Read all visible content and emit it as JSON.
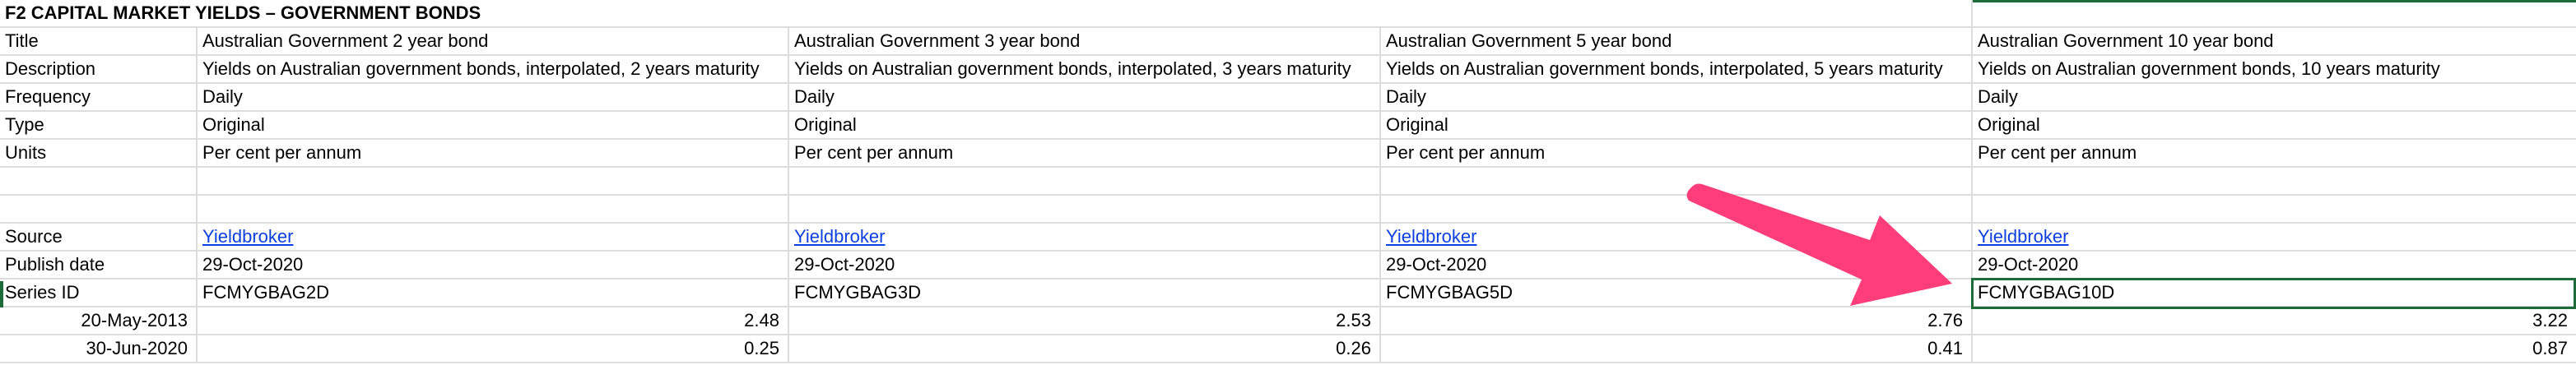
{
  "sheet": {
    "title": "F2 CAPITAL MARKET YIELDS – GOVERNMENT BONDS",
    "labels": {
      "title": "Title",
      "description": "Description",
      "frequency": "Frequency",
      "type": "Type",
      "units": "Units",
      "source": "Source",
      "publish_date": "Publish date",
      "series_id": "Series ID"
    },
    "columns": [
      {
        "title": "Australian Government 2 year bond",
        "description": "Yields on Australian government bonds, interpolated, 2 years maturity",
        "frequency": "Daily",
        "type": "Original",
        "units": "Per cent per annum",
        "source": "Yieldbroker",
        "publish_date": "29-Oct-2020",
        "series_id": "FCMYGBAG2D",
        "values": [
          "2.48",
          "0.25"
        ]
      },
      {
        "title": "Australian Government 3 year bond",
        "description": "Yields on Australian government bonds, interpolated, 3 years maturity",
        "frequency": "Daily",
        "type": "Original",
        "units": "Per cent per annum",
        "source": "Yieldbroker",
        "publish_date": "29-Oct-2020",
        "series_id": "FCMYGBAG3D",
        "values": [
          "2.53",
          "0.26"
        ]
      },
      {
        "title": "Australian Government 5 year bond",
        "description": "Yields on Australian government bonds, interpolated, 5 years maturity",
        "frequency": "Daily",
        "type": "Original",
        "units": "Per cent per annum",
        "source": "Yieldbroker",
        "publish_date": "29-Oct-2020",
        "series_id": "FCMYGBAG5D",
        "values": [
          "2.76",
          "0.41"
        ]
      },
      {
        "title": "Australian Government 10 year bond",
        "description": "Yields on Australian government bonds, 10 years maturity",
        "frequency": "Daily",
        "type": "Original",
        "units": "Per cent per annum",
        "source": "Yieldbroker",
        "publish_date": "29-Oct-2020",
        "series_id": "FCMYGBAG10D",
        "values": [
          "3.22",
          "0.87"
        ]
      }
    ],
    "dates": [
      "20-May-2013",
      "30-Jun-2020"
    ]
  },
  "colors": {
    "selection": "#1e6b3a",
    "arrow": "#ff3d7a",
    "link": "#0b3fe0",
    "gridline": "#dcdcdc"
  }
}
